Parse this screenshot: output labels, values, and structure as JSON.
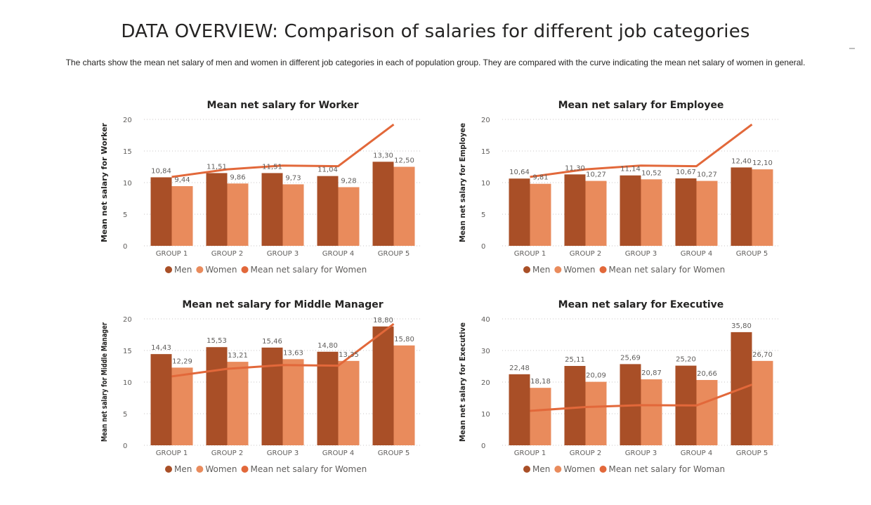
{
  "page": {
    "title": "DATA OVERVIEW: Comparison of salaries for different job categories",
    "subtitle": "The charts show the mean net salary of men and women in different job categories in each of population group. They are compared with the curve indicating the mean net salary of women in general."
  },
  "colors": {
    "men": "#A94F27",
    "women": "#E98B5C",
    "line": "#E2683A"
  },
  "chart_data": [
    {
      "type": "bar",
      "title": "Mean net salary for Worker",
      "ylabel": "Mean net salary for Worker",
      "xlabel": "",
      "categories": [
        "GROUP 1",
        "GROUP 2",
        "GROUP 3",
        "GROUP 4",
        "GROUP 5"
      ],
      "series": [
        {
          "name": "Men",
          "type": "bar",
          "values": [
            10.84,
            11.51,
            11.51,
            11.04,
            13.3
          ],
          "labels": [
            "10,84",
            "11,51",
            "11,51",
            "11,04",
            "13,30"
          ]
        },
        {
          "name": "Women",
          "type": "bar",
          "values": [
            9.44,
            9.86,
            9.73,
            9.28,
            12.5
          ],
          "labels": [
            "9,44",
            "9,86",
            "9,73",
            "9,28",
            "12,50"
          ]
        },
        {
          "name": "Mean net salary for Women",
          "type": "line",
          "values": [
            10.9,
            12.1,
            12.7,
            12.6,
            19.2
          ]
        }
      ],
      "ylim": [
        0,
        20
      ],
      "yticks": [
        0,
        5,
        10,
        15,
        20
      ],
      "grid": true,
      "legend": "bottom"
    },
    {
      "type": "bar",
      "title": "Mean net salary for Employee",
      "ylabel": "Mean net salary for Employee",
      "xlabel": "",
      "categories": [
        "GROUP 1",
        "GROUP 2",
        "GROUP 3",
        "GROUP 4",
        "GROUP 5"
      ],
      "series": [
        {
          "name": "Men",
          "type": "bar",
          "values": [
            10.64,
            11.3,
            11.14,
            10.67,
            12.4
          ],
          "labels": [
            "10,64",
            "11,30",
            "11,14",
            "10,67",
            "12,40"
          ]
        },
        {
          "name": "Women",
          "type": "bar",
          "values": [
            9.81,
            10.27,
            10.52,
            10.27,
            12.1
          ],
          "labels": [
            "9,81",
            "10,27",
            "10,52",
            "10,27",
            "12,10"
          ]
        },
        {
          "name": "Mean net salary for Women",
          "type": "line",
          "values": [
            10.9,
            12.1,
            12.7,
            12.6,
            19.2
          ]
        }
      ],
      "ylim": [
        0,
        20
      ],
      "yticks": [
        0,
        5,
        10,
        15,
        20
      ],
      "grid": true,
      "legend": "bottom"
    },
    {
      "type": "bar",
      "title": "Mean net salary for Middle Manager",
      "ylabel": "Mean net salary for Middle Manager",
      "xlabel": "",
      "categories": [
        "GROUP 1",
        "GROUP 2",
        "GROUP 3",
        "GROUP 4",
        "GROUP 5"
      ],
      "series": [
        {
          "name": "Men",
          "type": "bar",
          "values": [
            14.43,
            15.53,
            15.46,
            14.8,
            18.8
          ],
          "labels": [
            "14,43",
            "15,53",
            "15,46",
            "14,80",
            "18,80"
          ]
        },
        {
          "name": "Women",
          "type": "bar",
          "values": [
            12.29,
            13.21,
            13.63,
            13.35,
            15.8
          ],
          "labels": [
            "12,29",
            "13,21",
            "13,63",
            "13,35",
            "15,80"
          ]
        },
        {
          "name": "Mean net salary for Women",
          "type": "line",
          "values": [
            10.9,
            12.1,
            12.7,
            12.6,
            19.2
          ]
        }
      ],
      "ylim": [
        0,
        20
      ],
      "yticks": [
        0,
        5,
        10,
        15,
        20
      ],
      "grid": true,
      "legend": "bottom"
    },
    {
      "type": "bar",
      "title": "Mean net salary for Executive",
      "ylabel": "Mean net salary for Executive",
      "xlabel": "",
      "categories": [
        "GROUP 1",
        "GROUP 2",
        "GROUP 3",
        "GROUP 4",
        "GROUP 5"
      ],
      "series": [
        {
          "name": "Men",
          "type": "bar",
          "values": [
            22.48,
            25.11,
            25.69,
            25.2,
            35.8
          ],
          "labels": [
            "22,48",
            "25,11",
            "25,69",
            "25,20",
            "35,80"
          ]
        },
        {
          "name": "Women",
          "type": "bar",
          "values": [
            18.18,
            20.09,
            20.87,
            20.66,
            26.7
          ],
          "labels": [
            "18,18",
            "20,09",
            "20,87",
            "20,66",
            "26,70"
          ]
        },
        {
          "name": "Mean net salary for Woman",
          "type": "line",
          "values": [
            10.9,
            12.1,
            12.7,
            12.6,
            19.2
          ]
        }
      ],
      "ylim": [
        0,
        40
      ],
      "yticks": [
        0,
        10,
        20,
        30,
        40
      ],
      "grid": true,
      "legend": "bottom"
    }
  ]
}
